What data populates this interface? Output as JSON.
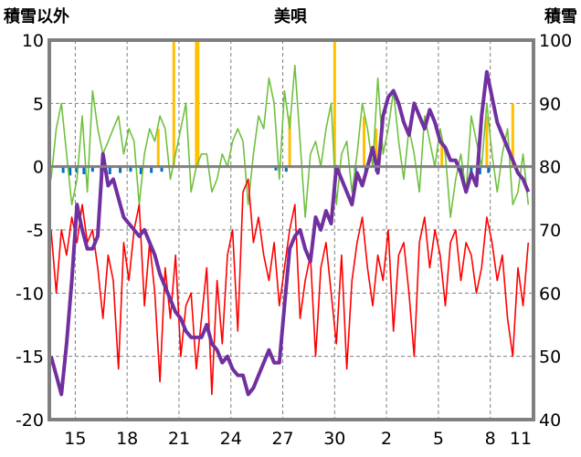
{
  "chart_data": {
    "type": "line",
    "title": "美唄",
    "left_axis_label": "積雪以外",
    "right_axis_label": "積雪",
    "left_ylim": [
      -20,
      10
    ],
    "left_yticks": [
      10,
      5,
      0,
      -5,
      -10,
      -15,
      -20
    ],
    "right_ylim": [
      40,
      100
    ],
    "right_yticks": [
      100,
      90,
      80,
      70,
      60,
      50,
      40
    ],
    "x_ticks": [
      "15",
      "18",
      "21",
      "24",
      "27",
      "30",
      "2",
      "5",
      "8",
      "11"
    ],
    "x_range": [
      13.5,
      41.5
    ],
    "x_tick_positions": [
      15,
      18,
      21,
      24,
      27,
      30,
      33,
      36,
      39,
      42
    ],
    "grid": true,
    "colors": {
      "temp_max": "#70c040",
      "temp_min": "#ff0000",
      "snow_depth": "#7030a0",
      "snowfall": "#ffc000",
      "precip": "#0070c0",
      "zero_line": "#808080",
      "frame": "#808080",
      "grid": "#808080"
    },
    "series": [
      {
        "key": "temp_max",
        "axis": "left",
        "x": [
          13.6,
          13.9,
          14.2,
          14.5,
          14.8,
          15.1,
          15.4,
          15.7,
          16.0,
          16.3,
          16.6,
          16.9,
          17.2,
          17.5,
          17.8,
          18.1,
          18.4,
          18.7,
          19.0,
          19.3,
          19.6,
          19.9,
          20.2,
          20.5,
          20.8,
          21.1,
          21.4,
          21.7,
          22.0,
          22.3,
          22.6,
          22.9,
          23.2,
          23.5,
          23.8,
          24.1,
          24.4,
          24.7,
          25.0,
          25.3,
          25.6,
          25.9,
          26.2,
          26.5,
          26.8,
          27.1,
          27.4,
          27.7,
          28.0,
          28.3,
          28.6,
          28.9,
          29.2,
          29.5,
          29.8,
          30.1,
          30.4,
          30.7,
          31.0,
          31.3,
          31.6,
          31.9,
          32.2,
          32.5,
          32.8,
          33.1,
          33.4,
          33.7,
          34.0,
          34.3,
          34.6,
          34.9,
          35.2,
          35.5,
          35.8,
          36.1,
          36.4,
          36.7,
          37.0,
          37.3,
          37.6,
          37.9,
          38.2,
          38.5,
          38.8,
          39.1,
          39.4,
          39.7,
          40.0,
          40.3,
          40.6,
          40.9,
          41.2
        ],
        "values": [
          -1,
          3,
          5,
          1,
          -3,
          -1,
          4,
          -2,
          6,
          3,
          1,
          2,
          3,
          4,
          1,
          3,
          2,
          -3,
          1,
          3,
          2,
          4,
          3,
          -1,
          1,
          3,
          5,
          -2,
          0,
          1,
          1,
          -2,
          -1,
          1,
          0,
          2,
          3,
          2,
          -3,
          1,
          4,
          3,
          7,
          5,
          -1,
          6,
          3,
          8,
          2,
          -4,
          1,
          2,
          0,
          3,
          5,
          -3,
          1,
          2,
          -2,
          1,
          5,
          3,
          0,
          7,
          1,
          3,
          6,
          2,
          -1,
          3,
          1,
          -2,
          4,
          2,
          0,
          3,
          1,
          -4,
          -1,
          1,
          -2,
          4,
          2,
          0,
          5,
          1,
          -2,
          1,
          3,
          -3,
          -2,
          1,
          -3
        ]
      },
      {
        "key": "temp_min",
        "axis": "left",
        "x": [
          13.6,
          13.9,
          14.2,
          14.5,
          14.8,
          15.1,
          15.4,
          15.7,
          16.0,
          16.3,
          16.6,
          16.9,
          17.2,
          17.5,
          17.8,
          18.1,
          18.4,
          18.7,
          19.0,
          19.3,
          19.6,
          19.9,
          20.2,
          20.5,
          20.8,
          21.1,
          21.4,
          21.7,
          22.0,
          22.3,
          22.6,
          22.9,
          23.2,
          23.5,
          23.8,
          24.1,
          24.4,
          24.7,
          25.0,
          25.3,
          25.6,
          25.9,
          26.2,
          26.5,
          26.8,
          27.1,
          27.4,
          27.7,
          28.0,
          28.3,
          28.6,
          28.9,
          29.2,
          29.5,
          29.8,
          30.1,
          30.4,
          30.7,
          31.0,
          31.3,
          31.6,
          31.9,
          32.2,
          32.5,
          32.8,
          33.1,
          33.4,
          33.7,
          34.0,
          34.3,
          34.6,
          34.9,
          35.2,
          35.5,
          35.8,
          36.1,
          36.4,
          36.7,
          37.0,
          37.3,
          37.6,
          37.9,
          38.2,
          38.5,
          38.8,
          39.1,
          39.4,
          39.7,
          40.0,
          40.3,
          40.6,
          40.9,
          41.2
        ],
        "values": [
          -5,
          -10,
          -5,
          -7,
          -4,
          -6,
          -3,
          -6,
          -5,
          -8,
          -12,
          -7,
          -9,
          -16,
          -6,
          -9,
          -5,
          -3,
          -11,
          -6,
          -10,
          -17,
          -8,
          -12,
          -7,
          -15,
          -11,
          -10,
          -16,
          -12,
          -8,
          -18,
          -9,
          -14,
          -7,
          -5,
          -13,
          -2,
          -1,
          -6,
          -4,
          -7,
          -9,
          -6,
          -11,
          -8,
          -5,
          -3,
          -12,
          -9,
          -7,
          -15,
          -8,
          -6,
          -10,
          -14,
          -7,
          -16,
          -9,
          -6,
          -4,
          -8,
          -11,
          -7,
          -9,
          -5,
          -13,
          -7,
          -6,
          -10,
          -15,
          -6,
          -4,
          -8,
          -5,
          -7,
          -11,
          -6,
          -5,
          -9,
          -6,
          -7,
          -10,
          -8,
          -4,
          -6,
          -9,
          -7,
          -12,
          -15,
          -8,
          -11,
          -6
        ]
      },
      {
        "key": "snow_depth",
        "axis": "right",
        "x": [
          13.6,
          13.9,
          14.2,
          14.5,
          14.8,
          15.1,
          15.4,
          15.7,
          16.0,
          16.3,
          16.6,
          16.9,
          17.2,
          17.5,
          17.8,
          18.1,
          18.4,
          18.7,
          19.0,
          19.3,
          19.6,
          19.9,
          20.2,
          20.5,
          20.8,
          21.1,
          21.4,
          21.7,
          22.0,
          22.3,
          22.6,
          22.9,
          23.2,
          23.5,
          23.8,
          24.1,
          24.4,
          24.7,
          25.0,
          25.3,
          25.6,
          25.9,
          26.2,
          26.5,
          26.8,
          27.1,
          27.4,
          27.7,
          28.0,
          28.3,
          28.6,
          28.9,
          29.2,
          29.5,
          29.8,
          30.1,
          30.4,
          30.7,
          31.0,
          31.3,
          31.6,
          31.9,
          32.2,
          32.5,
          32.8,
          33.1,
          33.4,
          33.7,
          34.0,
          34.3,
          34.6,
          34.9,
          35.2,
          35.5,
          35.8,
          36.1,
          36.4,
          36.7,
          37.0,
          37.3,
          37.6,
          37.9,
          38.2,
          38.5,
          38.8,
          39.1,
          39.4,
          39.7,
          40.0,
          40.3,
          40.6,
          40.9,
          41.2
        ],
        "values": [
          50,
          47,
          44,
          52,
          62,
          74,
          70,
          67,
          67,
          69,
          82,
          77,
          78,
          75,
          72,
          71,
          70,
          69,
          70,
          68,
          66,
          63,
          61,
          59,
          57,
          56,
          54,
          53,
          53,
          53,
          55,
          52,
          51,
          49,
          50,
          48,
          47,
          47,
          44,
          45,
          47,
          49,
          51,
          49,
          49,
          58,
          67,
          69,
          70,
          67,
          65,
          72,
          70,
          73,
          71,
          80,
          78,
          76,
          74,
          79,
          77,
          80,
          83,
          79,
          88,
          91,
          92,
          90,
          87,
          85,
          90,
          88,
          86,
          89,
          87,
          84,
          83,
          81,
          81,
          79,
          76,
          79,
          77,
          88,
          95,
          91,
          87,
          85,
          83,
          81,
          79,
          78,
          76
        ]
      },
      {
        "key": "snowfall",
        "axis": "left",
        "type": "bar",
        "x": [
          22.0,
          22.05,
          22.1,
          30.0,
          31.7,
          32.4,
          36.2,
          38.8,
          40.3,
          41.5,
          27.4,
          19.8,
          20.7
        ],
        "values": [
          10,
          10,
          10,
          10,
          4,
          3,
          2,
          4,
          5,
          10,
          4,
          3,
          10
        ]
      },
      {
        "key": "precip",
        "axis": "left",
        "type": "bar",
        "x": [
          14.3,
          14.7,
          15.1,
          15.5,
          16.0,
          16.5,
          17.0,
          17.6,
          18.2,
          18.8,
          19.4,
          20.0,
          26.6,
          27.2,
          31.2,
          31.8,
          32.4,
          37.4,
          37.9,
          38.4,
          38.9
        ],
        "values": [
          -0.5,
          -0.7,
          -0.5,
          -0.6,
          -0.4,
          -0.5,
          -0.6,
          -0.5,
          -0.4,
          -0.6,
          -0.5,
          -0.4,
          -0.3,
          -0.4,
          -0.5,
          -0.6,
          -0.4,
          -0.7,
          -0.5,
          -0.6,
          -0.5
        ]
      }
    ]
  }
}
